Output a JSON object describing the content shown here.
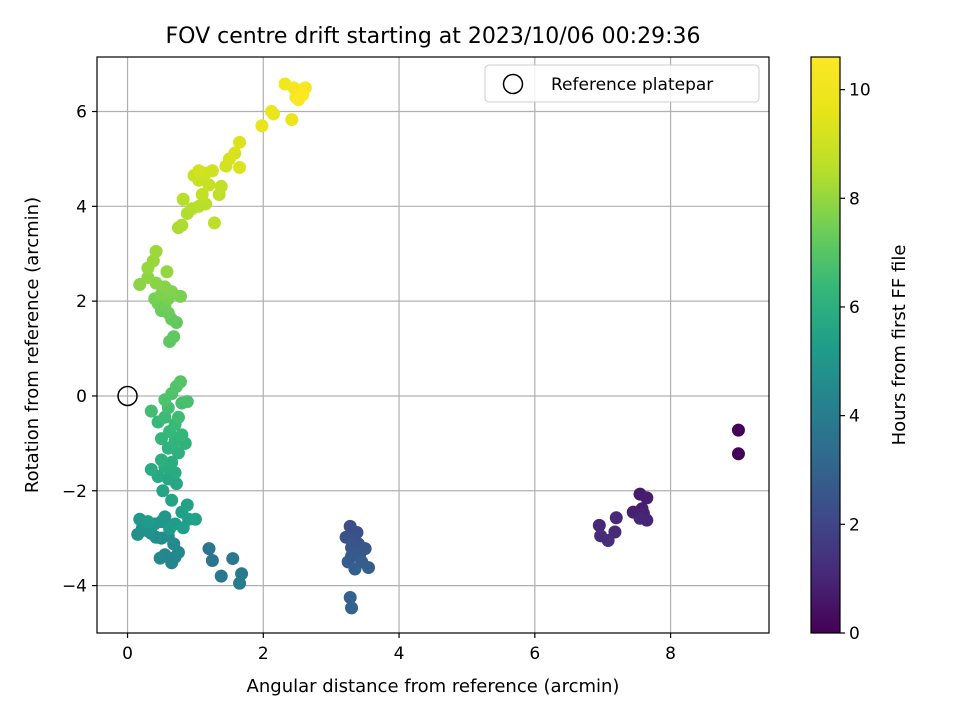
{
  "chart_data": {
    "type": "scatter",
    "title": "FOV centre drift starting at 2023/10/06 00:29:36",
    "xlabel": "Angular distance from reference (arcmin)",
    "ylabel": "Rotation from reference (arcmin)",
    "xlim": [
      -0.45,
      9.45
    ],
    "ylim": [
      -5.0,
      7.15
    ],
    "xticks": [
      0,
      2,
      4,
      6,
      8
    ],
    "yticks": [
      -4,
      -2,
      0,
      2,
      4,
      6
    ],
    "grid": true,
    "legend": {
      "position": "top-right",
      "entries": [
        {
          "label": "Reference platepar",
          "marker": "open-circle"
        }
      ]
    },
    "reference_point": {
      "x": 0,
      "y": 0
    },
    "colorbar": {
      "label": "Hours from first FF file",
      "min": 0,
      "max": 10.6,
      "ticks": [
        0,
        2,
        4,
        6,
        8,
        10
      ],
      "colormap": "viridis"
    },
    "points": [
      {
        "x": 9.0,
        "y": -0.72,
        "t": 0.05
      },
      {
        "x": 9.0,
        "y": -1.22,
        "t": 0.1
      },
      {
        "x": 7.55,
        "y": -2.07,
        "t": 0.7
      },
      {
        "x": 7.65,
        "y": -2.15,
        "t": 0.75
      },
      {
        "x": 7.58,
        "y": -2.38,
        "t": 0.8
      },
      {
        "x": 7.45,
        "y": -2.45,
        "t": 0.85
      },
      {
        "x": 7.6,
        "y": -2.48,
        "t": 0.9
      },
      {
        "x": 7.65,
        "y": -2.62,
        "t": 0.95
      },
      {
        "x": 7.55,
        "y": -2.58,
        "t": 1.0
      },
      {
        "x": 7.2,
        "y": -2.57,
        "t": 1.05
      },
      {
        "x": 6.95,
        "y": -2.73,
        "t": 1.1
      },
      {
        "x": 7.18,
        "y": -2.87,
        "t": 1.15
      },
      {
        "x": 6.97,
        "y": -2.95,
        "t": 1.2
      },
      {
        "x": 7.08,
        "y": -3.05,
        "t": 1.25
      },
      {
        "x": 3.28,
        "y": -2.75,
        "t": 2.3
      },
      {
        "x": 3.38,
        "y": -2.88,
        "t": 2.35
      },
      {
        "x": 3.22,
        "y": -2.98,
        "t": 2.4
      },
      {
        "x": 3.32,
        "y": -3.05,
        "t": 2.45
      },
      {
        "x": 3.4,
        "y": -3.12,
        "t": 2.5
      },
      {
        "x": 3.3,
        "y": -3.2,
        "t": 2.55
      },
      {
        "x": 3.5,
        "y": -3.22,
        "t": 2.6
      },
      {
        "x": 3.42,
        "y": -3.35,
        "t": 2.65
      },
      {
        "x": 3.3,
        "y": -3.38,
        "t": 2.7
      },
      {
        "x": 3.25,
        "y": -3.5,
        "t": 2.75
      },
      {
        "x": 3.45,
        "y": -3.5,
        "t": 2.8
      },
      {
        "x": 3.55,
        "y": -3.62,
        "t": 2.85
      },
      {
        "x": 3.35,
        "y": -3.65,
        "t": 2.9
      },
      {
        "x": 3.28,
        "y": -4.25,
        "t": 2.95
      },
      {
        "x": 3.3,
        "y": -4.47,
        "t": 3.0
      },
      {
        "x": 1.2,
        "y": -3.22,
        "t": 3.7
      },
      {
        "x": 1.25,
        "y": -3.47,
        "t": 3.75
      },
      {
        "x": 1.55,
        "y": -3.43,
        "t": 3.8
      },
      {
        "x": 1.38,
        "y": -3.8,
        "t": 3.85
      },
      {
        "x": 1.68,
        "y": -3.75,
        "t": 3.9
      },
      {
        "x": 1.65,
        "y": -3.95,
        "t": 3.95
      },
      {
        "x": 0.65,
        "y": -3.52,
        "t": 4.3
      },
      {
        "x": 0.7,
        "y": -3.4,
        "t": 4.35
      },
      {
        "x": 0.55,
        "y": -3.35,
        "t": 4.4
      },
      {
        "x": 0.48,
        "y": -3.42,
        "t": 4.45
      },
      {
        "x": 0.75,
        "y": -3.3,
        "t": 4.5
      },
      {
        "x": 0.68,
        "y": -3.12,
        "t": 4.55
      },
      {
        "x": 0.5,
        "y": -3.0,
        "t": 4.6
      },
      {
        "x": 0.6,
        "y": -2.95,
        "t": 4.65
      },
      {
        "x": 0.42,
        "y": -2.98,
        "t": 4.7
      },
      {
        "x": 0.35,
        "y": -2.9,
        "t": 4.75
      },
      {
        "x": 0.15,
        "y": -2.92,
        "t": 4.8
      },
      {
        "x": 0.22,
        "y": -2.78,
        "t": 4.85
      },
      {
        "x": 0.3,
        "y": -2.85,
        "t": 4.9
      },
      {
        "x": 0.4,
        "y": -2.7,
        "t": 4.95
      },
      {
        "x": 0.5,
        "y": -2.65,
        "t": 5.0
      },
      {
        "x": 0.55,
        "y": -2.55,
        "t": 5.05
      },
      {
        "x": 0.18,
        "y": -2.6,
        "t": 5.1
      },
      {
        "x": 0.3,
        "y": -2.65,
        "t": 5.15
      },
      {
        "x": 0.62,
        "y": -2.8,
        "t": 5.2
      },
      {
        "x": 0.7,
        "y": -2.7,
        "t": 5.25
      },
      {
        "x": 0.82,
        "y": -2.78,
        "t": 5.3
      },
      {
        "x": 0.9,
        "y": -2.6,
        "t": 5.35
      },
      {
        "x": 0.8,
        "y": -2.45,
        "t": 5.4
      },
      {
        "x": 1.0,
        "y": -2.6,
        "t": 5.45
      },
      {
        "x": 0.88,
        "y": -2.3,
        "t": 5.5
      },
      {
        "x": 0.65,
        "y": -2.2,
        "t": 5.55
      },
      {
        "x": 0.52,
        "y": -2.0,
        "t": 5.6
      },
      {
        "x": 0.72,
        "y": -1.85,
        "t": 5.65
      },
      {
        "x": 0.6,
        "y": -1.75,
        "t": 5.7
      },
      {
        "x": 0.45,
        "y": -1.7,
        "t": 5.75
      },
      {
        "x": 0.7,
        "y": -1.62,
        "t": 5.8
      },
      {
        "x": 0.35,
        "y": -1.55,
        "t": 5.85
      },
      {
        "x": 0.55,
        "y": -1.5,
        "t": 5.9
      },
      {
        "x": 0.65,
        "y": -1.4,
        "t": 5.95
      },
      {
        "x": 0.5,
        "y": -1.35,
        "t": 6.0
      },
      {
        "x": 0.75,
        "y": -1.2,
        "t": 6.05
      },
      {
        "x": 0.6,
        "y": -1.1,
        "t": 6.1
      },
      {
        "x": 0.85,
        "y": -1.0,
        "t": 6.15
      },
      {
        "x": 0.7,
        "y": -0.95,
        "t": 6.2
      },
      {
        "x": 0.5,
        "y": -0.9,
        "t": 6.25
      },
      {
        "x": 0.8,
        "y": -0.82,
        "t": 6.3
      },
      {
        "x": 0.62,
        "y": -0.75,
        "t": 6.35
      },
      {
        "x": 0.45,
        "y": -0.55,
        "t": 6.4
      },
      {
        "x": 0.7,
        "y": -0.6,
        "t": 6.45
      },
      {
        "x": 0.55,
        "y": -0.45,
        "t": 6.5
      },
      {
        "x": 0.75,
        "y": -0.45,
        "t": 6.55
      },
      {
        "x": 0.35,
        "y": -0.32,
        "t": 6.6
      },
      {
        "x": 0.6,
        "y": -0.25,
        "t": 6.65
      },
      {
        "x": 0.8,
        "y": -0.15,
        "t": 6.7
      },
      {
        "x": 0.88,
        "y": -0.12,
        "t": 6.75
      },
      {
        "x": 0.55,
        "y": -0.08,
        "t": 6.8
      },
      {
        "x": 0.65,
        "y": 0.05,
        "t": 6.85
      },
      {
        "x": 0.72,
        "y": 0.2,
        "t": 6.9
      },
      {
        "x": 0.78,
        "y": 0.3,
        "t": 6.95
      },
      {
        "x": 0.62,
        "y": 1.15,
        "t": 7.1
      },
      {
        "x": 0.68,
        "y": 1.25,
        "t": 7.15
      },
      {
        "x": 0.72,
        "y": 1.55,
        "t": 7.2
      },
      {
        "x": 0.65,
        "y": 1.62,
        "t": 7.25
      },
      {
        "x": 0.6,
        "y": 1.75,
        "t": 7.3
      },
      {
        "x": 0.5,
        "y": 1.8,
        "t": 7.35
      },
      {
        "x": 0.55,
        "y": 1.9,
        "t": 7.4
      },
      {
        "x": 0.45,
        "y": 1.95,
        "t": 7.45
      },
      {
        "x": 0.4,
        "y": 2.05,
        "t": 7.5
      },
      {
        "x": 0.6,
        "y": 2.05,
        "t": 7.55
      },
      {
        "x": 0.78,
        "y": 2.1,
        "t": 7.6
      },
      {
        "x": 0.5,
        "y": 2.15,
        "t": 7.65
      },
      {
        "x": 0.65,
        "y": 2.2,
        "t": 7.7
      },
      {
        "x": 0.55,
        "y": 2.3,
        "t": 7.75
      },
      {
        "x": 0.42,
        "y": 2.38,
        "t": 7.8
      },
      {
        "x": 0.18,
        "y": 2.35,
        "t": 7.85
      },
      {
        "x": 0.3,
        "y": 2.5,
        "t": 7.9
      },
      {
        "x": 0.58,
        "y": 2.62,
        "t": 7.95
      },
      {
        "x": 0.3,
        "y": 2.7,
        "t": 8.0
      },
      {
        "x": 0.38,
        "y": 2.85,
        "t": 8.05
      },
      {
        "x": 0.42,
        "y": 3.05,
        "t": 8.1
      },
      {
        "x": 0.75,
        "y": 3.55,
        "t": 8.3
      },
      {
        "x": 0.8,
        "y": 3.6,
        "t": 8.35
      },
      {
        "x": 0.88,
        "y": 3.85,
        "t": 8.4
      },
      {
        "x": 0.95,
        "y": 3.95,
        "t": 8.45
      },
      {
        "x": 1.05,
        "y": 4.0,
        "t": 8.5
      },
      {
        "x": 0.82,
        "y": 4.15,
        "t": 8.55
      },
      {
        "x": 1.15,
        "y": 4.05,
        "t": 8.6
      },
      {
        "x": 1.28,
        "y": 3.65,
        "t": 8.65
      },
      {
        "x": 1.35,
        "y": 4.25,
        "t": 8.7
      },
      {
        "x": 1.1,
        "y": 4.25,
        "t": 8.75
      },
      {
        "x": 1.38,
        "y": 4.42,
        "t": 8.8
      },
      {
        "x": 1.2,
        "y": 4.45,
        "t": 8.85
      },
      {
        "x": 1.05,
        "y": 4.55,
        "t": 8.9
      },
      {
        "x": 0.98,
        "y": 4.65,
        "t": 8.95
      },
      {
        "x": 1.15,
        "y": 4.7,
        "t": 9.0
      },
      {
        "x": 1.25,
        "y": 4.75,
        "t": 9.05
      },
      {
        "x": 1.05,
        "y": 4.75,
        "t": 9.1
      },
      {
        "x": 1.45,
        "y": 4.85,
        "t": 9.15
      },
      {
        "x": 1.5,
        "y": 5.0,
        "t": 9.2
      },
      {
        "x": 1.58,
        "y": 5.12,
        "t": 9.25
      },
      {
        "x": 1.65,
        "y": 4.82,
        "t": 9.3
      },
      {
        "x": 1.65,
        "y": 5.35,
        "t": 9.35
      },
      {
        "x": 1.98,
        "y": 5.7,
        "t": 9.7
      },
      {
        "x": 2.15,
        "y": 5.95,
        "t": 9.75
      },
      {
        "x": 2.12,
        "y": 6.0,
        "t": 9.8
      },
      {
        "x": 2.42,
        "y": 5.83,
        "t": 9.85
      },
      {
        "x": 2.32,
        "y": 6.58,
        "t": 10.1
      },
      {
        "x": 2.45,
        "y": 6.5,
        "t": 10.2
      },
      {
        "x": 2.55,
        "y": 6.45,
        "t": 10.3
      },
      {
        "x": 2.62,
        "y": 6.5,
        "t": 10.35
      },
      {
        "x": 2.48,
        "y": 6.3,
        "t": 10.4
      },
      {
        "x": 2.58,
        "y": 6.35,
        "t": 10.5
      },
      {
        "x": 2.52,
        "y": 6.25,
        "t": 10.55
      }
    ]
  }
}
